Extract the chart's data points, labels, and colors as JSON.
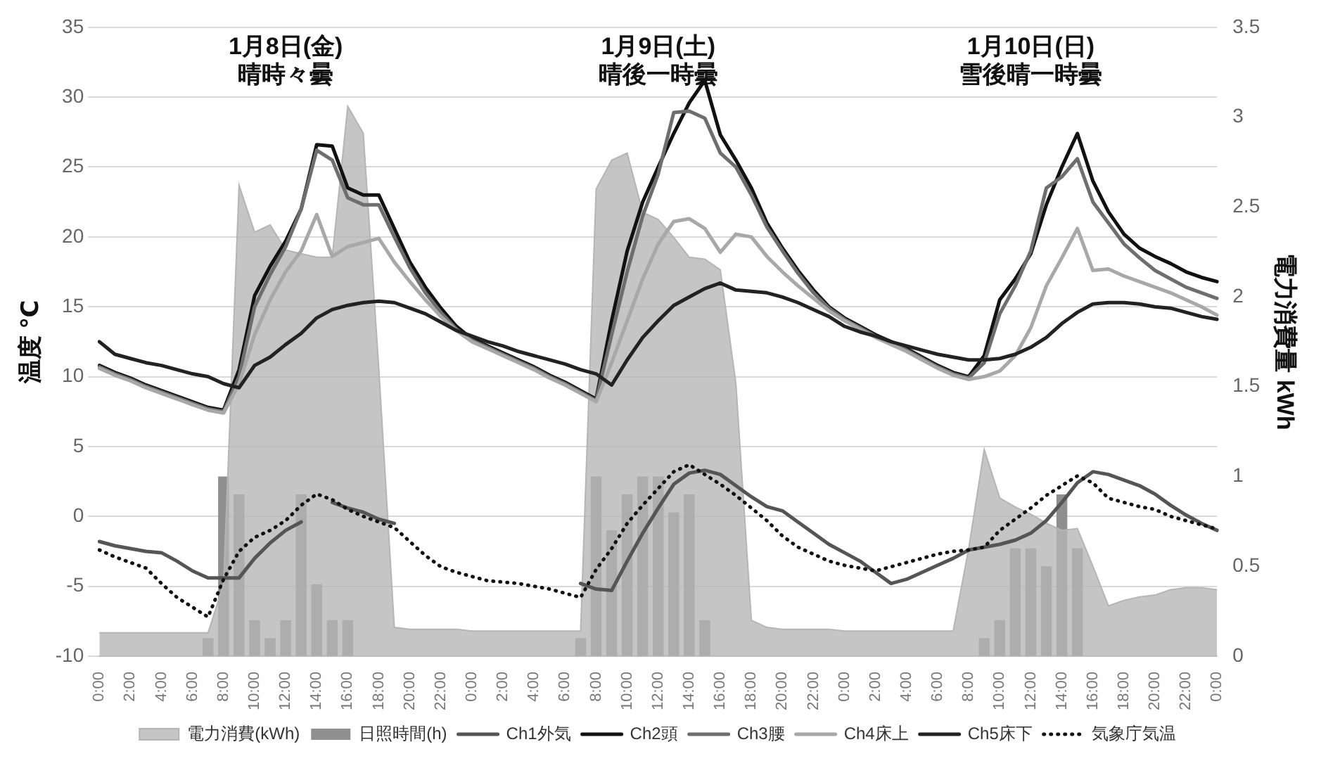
{
  "chart_data": {
    "type": "line",
    "categories": [
      "0:00",
      null,
      "2:00",
      null,
      "4:00",
      null,
      "6:00",
      null,
      "8:00",
      null,
      "10:00",
      null,
      "12:00",
      null,
      "14:00",
      null,
      "16:00",
      null,
      "18:00",
      null,
      "20:00",
      null,
      "22:00",
      null,
      "0:00",
      null,
      "2:00",
      null,
      "4:00",
      null,
      "6:00",
      null,
      "8:00",
      null,
      "10:00",
      null,
      "12:00",
      null,
      "14:00",
      null,
      "16:00",
      null,
      "18:00",
      null,
      "20:00",
      null,
      "22:00",
      null,
      "0:00",
      null,
      "2:00",
      null,
      "4:00",
      null,
      "6:00",
      null,
      "8:00",
      null,
      "10:00",
      null,
      "12:00",
      null,
      "14:00",
      null,
      "16:00",
      null,
      "18:00",
      null,
      "20:00",
      null,
      "22:00",
      null,
      "0:00"
    ],
    "series": [
      {
        "name": "電力消費(kWh)",
        "type": "area",
        "axis": "y2",
        "color": "#b5b5b5",
        "values": [
          0.13,
          0.13,
          0.13,
          0.13,
          0.13,
          0.13,
          0.13,
          0.13,
          0.4,
          2.62,
          2.36,
          2.4,
          2.26,
          2.24,
          2.22,
          2.22,
          3.06,
          2.91,
          1.6,
          0.16,
          0.15,
          0.15,
          0.15,
          0.15,
          0.14,
          0.14,
          0.14,
          0.14,
          0.14,
          0.14,
          0.14,
          0.14,
          2.6,
          2.76,
          2.8,
          2.47,
          2.43,
          2.33,
          2.22,
          2.21,
          2.15,
          1.52,
          0.2,
          0.16,
          0.15,
          0.15,
          0.15,
          0.15,
          0.14,
          0.14,
          0.14,
          0.14,
          0.14,
          0.14,
          0.14,
          0.14,
          0.6,
          1.15,
          0.88,
          0.83,
          0.79,
          0.74,
          0.7,
          0.71,
          0.5,
          0.28,
          0.31,
          0.33,
          0.34,
          0.37,
          0.38,
          0.38,
          0.37
        ]
      },
      {
        "name": "日照時間(h)",
        "type": "bar",
        "axis": "y2",
        "color": "#8f8f8f",
        "values": [
          null,
          null,
          null,
          null,
          null,
          null,
          null,
          0.1,
          1.0,
          0.9,
          0.2,
          0.1,
          0.2,
          0.9,
          0.4,
          0.2,
          0.2,
          null,
          null,
          null,
          null,
          null,
          null,
          null,
          null,
          null,
          null,
          null,
          null,
          null,
          null,
          0.1,
          1.0,
          0.7,
          0.9,
          1.0,
          1.0,
          0.8,
          0.9,
          0.2,
          null,
          null,
          null,
          null,
          null,
          null,
          null,
          null,
          null,
          null,
          null,
          null,
          null,
          null,
          null,
          null,
          null,
          0.1,
          0.2,
          0.6,
          0.6,
          0.5,
          0.9,
          0.6,
          null,
          null,
          null,
          null,
          null,
          null,
          null,
          null,
          null
        ]
      },
      {
        "name": "Ch1外気",
        "color": "#555555",
        "values": [
          -1.8,
          -2.1,
          -2.3,
          -2.5,
          -2.6,
          -3.2,
          -3.9,
          -4.4,
          -4.4,
          -4.4,
          -3.0,
          -1.9,
          -1.0,
          -0.4,
          null,
          1.0,
          0.6,
          0.3,
          -0.2,
          -0.5,
          null,
          null,
          null,
          null,
          null,
          null,
          null,
          null,
          null,
          null,
          null,
          -4.8,
          -5.2,
          -5.3,
          -3.2,
          -1.2,
          0.6,
          2.3,
          3.1,
          3.3,
          3.0,
          2.2,
          1.4,
          0.7,
          0.4,
          -0.4,
          -1.2,
          -2.0,
          -2.6,
          -3.2,
          -4.0,
          -4.8,
          -4.5,
          -4.0,
          -3.5,
          -3.0,
          -2.4,
          -2.2,
          -2.0,
          -1.7,
          -1.2,
          -0.3,
          1.0,
          2.4,
          3.2,
          3.0,
          2.6,
          2.2,
          1.6,
          0.8,
          0.1,
          -0.5,
          -1.0
        ]
      },
      {
        "name": "Ch2頭",
        "color": "#111111",
        "values": [
          10.8,
          10.3,
          9.9,
          9.4,
          9.0,
          8.6,
          8.2,
          7.8,
          7.6,
          10.5,
          15.8,
          17.9,
          19.7,
          22.0,
          26.6,
          26.5,
          23.5,
          23.0,
          23.0,
          20.6,
          18.2,
          16.4,
          14.9,
          13.6,
          12.7,
          12.2,
          11.7,
          11.2,
          10.7,
          10.1,
          9.6,
          9.0,
          8.4,
          14.0,
          19.0,
          22.5,
          25.0,
          27.4,
          29.6,
          31.2,
          27.3,
          25.5,
          23.5,
          21.0,
          19.2,
          17.6,
          16.2,
          15.0,
          14.2,
          13.6,
          13.0,
          12.5,
          12.0,
          11.4,
          10.8,
          10.3,
          10.0,
          11.5,
          15.5,
          17.0,
          18.8,
          22.3,
          25.0,
          27.4,
          24.0,
          21.8,
          20.2,
          19.2,
          18.6,
          18.1,
          17.5,
          17.1,
          16.8
        ]
      },
      {
        "name": "Ch3腰",
        "color": "#6e6e6e",
        "values": [
          10.7,
          10.2,
          9.8,
          9.3,
          8.9,
          8.5,
          8.1,
          7.7,
          7.5,
          10.0,
          15.0,
          17.3,
          19.3,
          22.0,
          26.2,
          25.5,
          22.8,
          22.3,
          22.3,
          20.0,
          17.8,
          16.0,
          14.6,
          13.4,
          12.6,
          12.1,
          11.6,
          11.1,
          10.6,
          10.0,
          9.5,
          8.9,
          8.3,
          13.0,
          17.5,
          21.5,
          24.5,
          28.9,
          29.0,
          28.5,
          26.0,
          25.0,
          23.0,
          20.7,
          19.0,
          17.4,
          16.0,
          14.9,
          14.1,
          13.5,
          12.9,
          12.4,
          11.9,
          11.3,
          10.7,
          10.2,
          9.9,
          11.0,
          14.5,
          16.5,
          19.0,
          23.5,
          24.3,
          25.6,
          22.5,
          21.0,
          19.5,
          18.5,
          17.6,
          17.0,
          16.4,
          16.0,
          15.6
        ]
      },
      {
        "name": "Ch4床上",
        "color": "#a8a8a8",
        "values": [
          10.6,
          10.1,
          9.7,
          9.2,
          8.8,
          8.4,
          8.0,
          7.6,
          7.4,
          9.5,
          13.0,
          15.5,
          17.5,
          19.0,
          21.6,
          18.6,
          19.3,
          19.6,
          19.9,
          18.2,
          16.8,
          15.5,
          14.3,
          13.3,
          12.5,
          12.0,
          11.5,
          11.0,
          10.5,
          9.9,
          9.4,
          8.8,
          8.2,
          11.0,
          14.0,
          17.0,
          19.5,
          21.1,
          21.3,
          20.6,
          18.9,
          20.2,
          20.0,
          18.6,
          17.5,
          16.5,
          15.6,
          14.7,
          14.0,
          13.4,
          12.8,
          12.3,
          11.8,
          11.2,
          10.6,
          10.1,
          9.8,
          10.0,
          10.4,
          11.5,
          13.5,
          16.5,
          18.5,
          20.6,
          17.6,
          17.7,
          17.2,
          16.8,
          16.4,
          16.0,
          15.5,
          15.0,
          14.4
        ]
      },
      {
        "name": "Ch5床下",
        "color": "#222222",
        "values": [
          12.5,
          11.6,
          11.3,
          11.0,
          10.8,
          10.5,
          10.2,
          10.0,
          9.5,
          9.2,
          10.8,
          11.4,
          12.3,
          13.1,
          14.2,
          14.8,
          15.1,
          15.3,
          15.4,
          15.3,
          14.9,
          14.5,
          13.9,
          13.3,
          12.9,
          12.5,
          12.2,
          11.8,
          11.5,
          11.2,
          10.9,
          10.5,
          10.2,
          9.4,
          11.2,
          12.8,
          14.0,
          15.1,
          15.7,
          16.3,
          16.7,
          16.2,
          16.1,
          16.0,
          15.7,
          15.3,
          14.8,
          14.3,
          13.6,
          13.2,
          12.9,
          12.5,
          12.2,
          11.9,
          11.6,
          11.4,
          11.2,
          11.2,
          11.3,
          11.6,
          12.1,
          12.8,
          13.8,
          14.6,
          15.2,
          15.3,
          15.3,
          15.2,
          15.0,
          14.9,
          14.6,
          14.3,
          14.1
        ]
      },
      {
        "name": "気象庁気温",
        "line_style": "dotted",
        "color": "#111111",
        "values": [
          -2.4,
          -2.9,
          -3.3,
          -3.7,
          -4.8,
          -5.8,
          -6.5,
          -7.2,
          -4.5,
          -2.5,
          -1.5,
          -1.0,
          -0.3,
          0.8,
          1.6,
          1.2,
          0.5,
          0.0,
          -0.4,
          -0.8,
          -1.8,
          -2.8,
          -3.6,
          -4.0,
          -4.3,
          -4.6,
          -4.7,
          -4.8,
          -5.0,
          -5.2,
          -5.5,
          -5.8,
          -3.8,
          -2.3,
          -0.5,
          0.8,
          2.0,
          3.2,
          3.7,
          3.0,
          2.3,
          1.5,
          0.6,
          -0.3,
          -1.4,
          -2.2,
          -2.7,
          -3.2,
          -3.5,
          -3.7,
          -3.9,
          -3.6,
          -3.3,
          -3.0,
          -2.7,
          -2.5,
          -2.4,
          -2.2,
          -1.0,
          -0.2,
          0.6,
          1.5,
          2.2,
          2.9,
          2.4,
          1.3,
          1.0,
          0.7,
          0.5,
          0.0,
          -0.3,
          -0.6,
          -0.9
        ]
      }
    ],
    "ylabel": "温度 ℃",
    "y2label": "電力消費量 kWh",
    "ylim": [
      -10,
      35
    ],
    "yticks": [
      -10,
      -5,
      0,
      5,
      10,
      15,
      20,
      25,
      30,
      35
    ],
    "y2lim": [
      0,
      3.5
    ],
    "y2ticks": [
      0,
      0.5,
      1,
      1.5,
      2,
      2.5,
      3,
      3.5
    ],
    "annotations": [
      "1月8日(金)\n晴時々曇",
      "1月9日(土)\n晴後一時曇",
      "1月10日(日)\n雪後晴一時曇"
    ],
    "grid": "y",
    "legend": "bottom",
    "marker": "none"
  }
}
